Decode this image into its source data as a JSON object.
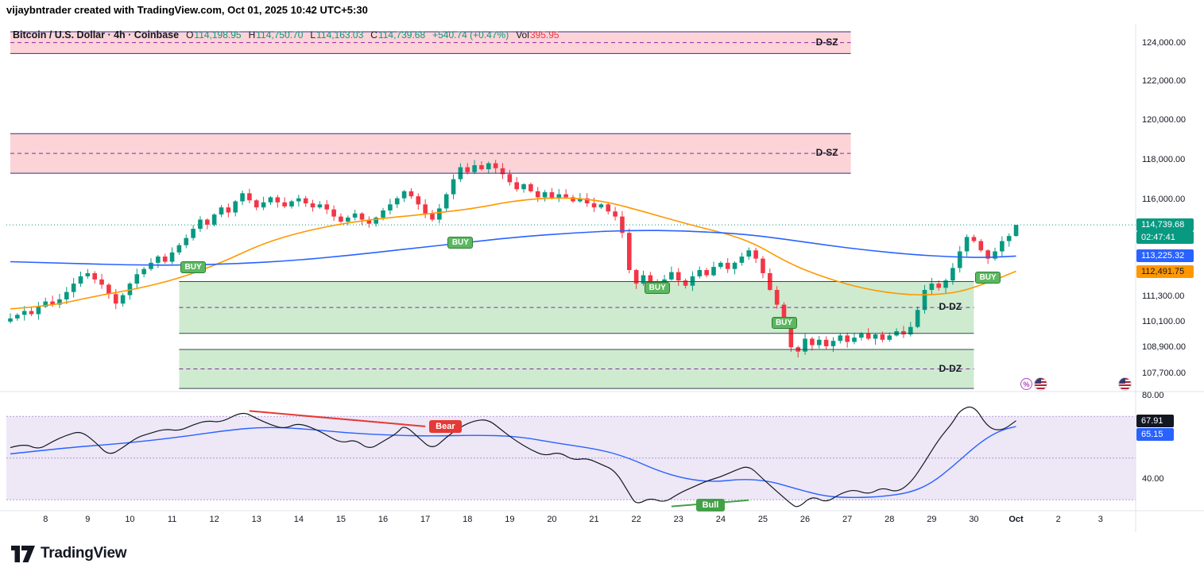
{
  "attribution": "vijaybntrader created with TradingView.com, Oct 01, 2025 10:42 UTC+5:30",
  "header": {
    "title": "Bitcoin / U.S. Dollar · 4h · Coinbase",
    "o_label": "O",
    "o": "114,198.95",
    "h_label": "H",
    "h": "114,750.70",
    "l_label": "L",
    "l": "114,163.03",
    "c_label": "C",
    "c": "114,739.68",
    "change": "+540.74 (+0.47%)",
    "vol_label": "Vol",
    "vol": "395.95"
  },
  "badges": {
    "last_price": "114,739.68",
    "countdown": "02:47:41",
    "ma_blue": "113,225.32",
    "ma_orange": "112,491.75",
    "rsi": "67.91",
    "rsi_ma": "65.15"
  },
  "price_axis": {
    "ticks": [
      {
        "v": 124000,
        "label": "124,000.00"
      },
      {
        "v": 122000,
        "label": "122,000.00"
      },
      {
        "v": 120000,
        "label": "120,000.00"
      },
      {
        "v": 118000,
        "label": "118,000.00"
      },
      {
        "v": 116000,
        "label": "116,000.00"
      },
      {
        "v": 111300,
        "label": "111,300.00"
      },
      {
        "v": 110100,
        "label": "110,100.00"
      },
      {
        "v": 108900,
        "label": "108,900.00"
      },
      {
        "v": 107700,
        "label": "107,700.00"
      }
    ]
  },
  "rsi_axis": {
    "ticks": [
      {
        "v": 80,
        "label": "80.00"
      },
      {
        "v": 40,
        "label": "40.00"
      }
    ]
  },
  "time_axis": [
    {
      "label": "8",
      "i": 5
    },
    {
      "label": "9",
      "i": 11
    },
    {
      "label": "10",
      "i": 17
    },
    {
      "label": "11",
      "i": 23
    },
    {
      "label": "12",
      "i": 29
    },
    {
      "label": "13",
      "i": 35
    },
    {
      "label": "14",
      "i": 41
    },
    {
      "label": "15",
      "i": 47
    },
    {
      "label": "16",
      "i": 53
    },
    {
      "label": "17",
      "i": 59
    },
    {
      "label": "18",
      "i": 65
    },
    {
      "label": "19",
      "i": 71
    },
    {
      "label": "20",
      "i": 77
    },
    {
      "label": "21",
      "i": 83
    },
    {
      "label": "22",
      "i": 89
    },
    {
      "label": "23",
      "i": 95
    },
    {
      "label": "24",
      "i": 101
    },
    {
      "label": "25",
      "i": 107
    },
    {
      "label": "26",
      "i": 113
    },
    {
      "label": "27",
      "i": 119
    },
    {
      "label": "28",
      "i": 125
    },
    {
      "label": "29",
      "i": 131
    },
    {
      "label": "30",
      "i": 137
    },
    {
      "label": "Oct",
      "i": 143,
      "bold": true
    },
    {
      "label": "2",
      "i": 149
    },
    {
      "label": "3",
      "i": 155
    }
  ],
  "zones": [
    {
      "type": "supply",
      "label": "D-SZ",
      "price_top": 124600,
      "price_bottom": 123450,
      "i_from": 0,
      "i_to": 119.5
    },
    {
      "type": "supply",
      "label": "D-SZ",
      "price_top": 119300,
      "price_bottom": 117300,
      "i_from": 0,
      "i_to": 119.5
    },
    {
      "type": "demand",
      "label": "D-DZ",
      "price_top": 112000,
      "price_bottom": 109550,
      "i_from": 24,
      "i_to": 137
    },
    {
      "type": "demand",
      "label": "D-DZ",
      "price_top": 108800,
      "price_bottom": 107000,
      "i_from": 24,
      "i_to": 137
    }
  ],
  "buy_label": "BUY",
  "buy_signals": [
    {
      "i": 26,
      "price": 112700
    },
    {
      "i": 64,
      "price": 113900
    },
    {
      "i": 92,
      "price": 111700
    },
    {
      "i": 110,
      "price": 110050
    },
    {
      "i": 139,
      "price": 112200
    }
  ],
  "annotations": {
    "bear": {
      "label": "Bear",
      "from_i": 34,
      "from_rsi": 72.6,
      "to_i": 59,
      "to_rsi": 65.2
    },
    "bull": {
      "label": "Bull",
      "from_i": 94,
      "from_rsi": 26.8,
      "to_i": 105,
      "to_rsi": 29.8
    }
  },
  "price_line_value": 114739.68,
  "chart_data": {
    "type": "candlestick",
    "title": "Bitcoin / U.S. Dollar",
    "exchange": "Coinbase",
    "interval": "4h",
    "scale": "log",
    "first_open": 110100,
    "closes": [
      110250,
      110420,
      110600,
      110450,
      110800,
      111050,
      110900,
      111150,
      111500,
      111900,
      112250,
      112400,
      112100,
      111850,
      111400,
      110950,
      111350,
      111900,
      112350,
      112600,
      112900,
      113200,
      112950,
      113400,
      113750,
      114100,
      114550,
      115000,
      114750,
      115250,
      115600,
      115350,
      115900,
      116300,
      115950,
      115600,
      115850,
      116100,
      115850,
      115650,
      115900,
      116050,
      115800,
      115600,
      115750,
      115500,
      115150,
      114900,
      115100,
      115300,
      115000,
      114800,
      115100,
      115450,
      115750,
      116050,
      116400,
      116150,
      115750,
      115300,
      115000,
      115550,
      116250,
      117000,
      117600,
      117350,
      117700,
      117500,
      117800,
      117550,
      117250,
      116850,
      116500,
      116750,
      116400,
      116100,
      116350,
      116050,
      116250,
      116100,
      115900,
      116050,
      115800,
      115600,
      115750,
      115400,
      115150,
      114350,
      112550,
      111900,
      112300,
      112000,
      111700,
      112100,
      112450,
      112050,
      111800,
      112250,
      112550,
      112300,
      112700,
      112900,
      112600,
      112900,
      113200,
      113500,
      113100,
      112400,
      111600,
      110900,
      110150,
      108900,
      108700,
      109300,
      109000,
      109250,
      108950,
      109200,
      109450,
      109150,
      109350,
      109550,
      109300,
      109500,
      109250,
      109450,
      109650,
      109500,
      109850,
      110650,
      111600,
      111900,
      111700,
      112050,
      112650,
      113450,
      114150,
      113950,
      113500,
      113100,
      113450,
      113950,
      114198.95,
      114739.68
    ],
    "last_candle": {
      "open": 114198.95,
      "high": 114750.7,
      "low": 114163.03,
      "close": 114739.68
    },
    "ma_fast_points": [
      [
        0,
        110700
      ],
      [
        6,
        110850
      ],
      [
        12,
        111300
      ],
      [
        18,
        111650
      ],
      [
        24,
        112150
      ],
      [
        30,
        112900
      ],
      [
        36,
        113850
      ],
      [
        42,
        114450
      ],
      [
        48,
        114850
      ],
      [
        54,
        115100
      ],
      [
        60,
        115300
      ],
      [
        66,
        115550
      ],
      [
        72,
        115950
      ],
      [
        78,
        116100
      ],
      [
        84,
        115950
      ],
      [
        90,
        115400
      ],
      [
        96,
        114800
      ],
      [
        102,
        114300
      ],
      [
        106,
        113800
      ],
      [
        110,
        113000
      ],
      [
        114,
        112400
      ],
      [
        120,
        111750
      ],
      [
        126,
        111400
      ],
      [
        131,
        111350
      ],
      [
        135,
        111500
      ],
      [
        139,
        111950
      ],
      [
        143,
        112491.75
      ]
    ],
    "ma_slow_points": [
      [
        0,
        112950
      ],
      [
        8,
        112880
      ],
      [
        16,
        112800
      ],
      [
        24,
        112780
      ],
      [
        32,
        112850
      ],
      [
        40,
        113000
      ],
      [
        48,
        113250
      ],
      [
        56,
        113550
      ],
      [
        64,
        113850
      ],
      [
        72,
        114150
      ],
      [
        80,
        114350
      ],
      [
        88,
        114480
      ],
      [
        96,
        114450
      ],
      [
        104,
        114300
      ],
      [
        110,
        114050
      ],
      [
        116,
        113750
      ],
      [
        122,
        113500
      ],
      [
        128,
        113300
      ],
      [
        134,
        113180
      ],
      [
        139,
        113150
      ],
      [
        143,
        113225.32
      ]
    ],
    "rsi": {
      "band": [
        30,
        70
      ],
      "last": 67.91,
      "ma_last": 65.15,
      "points": [
        [
          0,
          55
        ],
        [
          2,
          57
        ],
        [
          4,
          54
        ],
        [
          6,
          58
        ],
        [
          8,
          61
        ],
        [
          10,
          63
        ],
        [
          12,
          58
        ],
        [
          14,
          51
        ],
        [
          16,
          55
        ],
        [
          18,
          60
        ],
        [
          20,
          62
        ],
        [
          22,
          64
        ],
        [
          24,
          63
        ],
        [
          26,
          66
        ],
        [
          28,
          68
        ],
        [
          30,
          67
        ],
        [
          33,
          72.5
        ],
        [
          35,
          69
        ],
        [
          37,
          66
        ],
        [
          39,
          64
        ],
        [
          41,
          67
        ],
        [
          44,
          63
        ],
        [
          47,
          57
        ],
        [
          49,
          59
        ],
        [
          51,
          54
        ],
        [
          53,
          58
        ],
        [
          55,
          62
        ],
        [
          56,
          66
        ],
        [
          58,
          60
        ],
        [
          60,
          54
        ],
        [
          62,
          60
        ],
        [
          64,
          65
        ],
        [
          66,
          68
        ],
        [
          68,
          68.5
        ],
        [
          70,
          63
        ],
        [
          72,
          58
        ],
        [
          74,
          54
        ],
        [
          76,
          51
        ],
        [
          78,
          53
        ],
        [
          80,
          49
        ],
        [
          82,
          50
        ],
        [
          84,
          47
        ],
        [
          86,
          44
        ],
        [
          88,
          33
        ],
        [
          89,
          27.5
        ],
        [
          91,
          31
        ],
        [
          93,
          28.5
        ],
        [
          95,
          33
        ],
        [
          97,
          36
        ],
        [
          99,
          39
        ],
        [
          101,
          41
        ],
        [
          103,
          44
        ],
        [
          105,
          46.5
        ],
        [
          107,
          40
        ],
        [
          109,
          34
        ],
        [
          111,
          28
        ],
        [
          112,
          26
        ],
        [
          114,
          32
        ],
        [
          116,
          28.5
        ],
        [
          118,
          33
        ],
        [
          120,
          35
        ],
        [
          122,
          32.5
        ],
        [
          124,
          36
        ],
        [
          126,
          33.5
        ],
        [
          128,
          38
        ],
        [
          130,
          48
        ],
        [
          132,
          59
        ],
        [
          134,
          67
        ],
        [
          135,
          73
        ],
        [
          137,
          75.5
        ],
        [
          139,
          64.5
        ],
        [
          141,
          63
        ],
        [
          143,
          67.91
        ]
      ],
      "ma_points": [
        [
          0,
          52
        ],
        [
          8,
          55
        ],
        [
          16,
          57
        ],
        [
          24,
          60
        ],
        [
          30,
          63
        ],
        [
          36,
          65
        ],
        [
          42,
          64
        ],
        [
          48,
          62
        ],
        [
          54,
          61
        ],
        [
          60,
          60.5
        ],
        [
          66,
          61
        ],
        [
          72,
          60.5
        ],
        [
          78,
          57
        ],
        [
          84,
          54
        ],
        [
          88,
          50
        ],
        [
          92,
          44
        ],
        [
          96,
          40
        ],
        [
          100,
          38.5
        ],
        [
          104,
          40
        ],
        [
          108,
          39
        ],
        [
          112,
          35
        ],
        [
          116,
          31.5
        ],
        [
          120,
          31
        ],
        [
          124,
          31.5
        ],
        [
          128,
          33.5
        ],
        [
          131,
          38
        ],
        [
          134,
          46
        ],
        [
          137,
          55
        ],
        [
          139,
          60
        ],
        [
          141,
          63.5
        ],
        [
          143,
          65.15
        ]
      ]
    }
  },
  "icons": {
    "economic_event_symbol": "%"
  },
  "logo_text": "TradingView",
  "colors": {
    "up": "#089981",
    "down": "#f23645",
    "ma_fast": "#ff9800",
    "ma_slow": "#2962ff",
    "rsi_line": "#131722",
    "rsi_ma": "#2962ff",
    "rsi_band": "#7e57c2",
    "supply_fill": "rgba(242,54,69,0.22)",
    "supply_border": "#283593",
    "demand_fill": "rgba(103,194,108,0.32)",
    "demand_border": "#37474f",
    "zone_center": "#8e24aa",
    "bear": "#e53935",
    "bull": "#43a047",
    "separator": "#e0e3eb"
  }
}
